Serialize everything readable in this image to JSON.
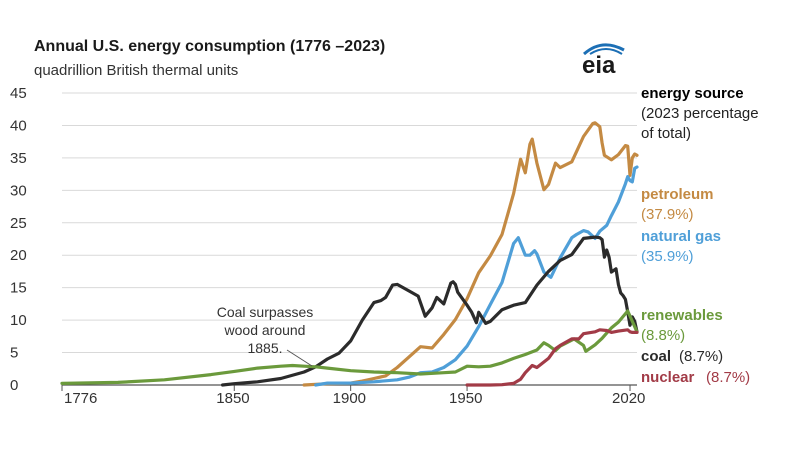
{
  "header": {
    "title": "Annual U.S. energy consumption (1776 –2023)",
    "subtitle": "quadrillion British thermal units",
    "logo_text": "eia",
    "logo_icon": "eia-logo-icon"
  },
  "legend": {
    "title": "energy source",
    "sub_line1": "(2023 percentage",
    "sub_line2": "of total)"
  },
  "annotation": {
    "line1": "Coal surpasses",
    "line2": "wood around",
    "line3": "1885."
  },
  "colors": {
    "petroleum": "#c48a43",
    "natural_gas": "#4f9fd8",
    "coal": "#2b2b2b",
    "renewables": "#6b9a3c",
    "nuclear": "#a23b47",
    "grid": "#d9d9d9",
    "axis": "#555555"
  },
  "chart_data": {
    "type": "line",
    "title": "Annual U.S. energy consumption (1776 –2023)",
    "subtitle": "quadrillion British thermal units",
    "xlabel": "",
    "ylabel": "",
    "xlim": [
      1776,
      2023
    ],
    "ylim": [
      0,
      45
    ],
    "grid": true,
    "legend_placement": "right",
    "x_ticks": [
      {
        "value": 1776,
        "label": "1776"
      },
      {
        "value": 1850,
        "label": "1850"
      },
      {
        "value": 1900,
        "label": "1900"
      },
      {
        "value": 1950,
        "label": "1950"
      },
      {
        "value": 2020,
        "label": "2020"
      }
    ],
    "y_ticks": [
      {
        "value": 0,
        "label": "0"
      },
      {
        "value": 5,
        "label": "5"
      },
      {
        "value": 10,
        "label": "10"
      },
      {
        "value": 15,
        "label": "15"
      },
      {
        "value": 20,
        "label": "20"
      },
      {
        "value": 25,
        "label": "25"
      },
      {
        "value": 30,
        "label": "30"
      },
      {
        "value": 35,
        "label": "35"
      },
      {
        "value": 40,
        "label": "40"
      },
      {
        "value": 45,
        "label": "45"
      }
    ],
    "series": [
      {
        "key": "petroleum",
        "name": "petroleum",
        "share": "(37.9%)",
        "points": [
          [
            1880,
            0
          ],
          [
            1890,
            0.2
          ],
          [
            1900,
            0.3
          ],
          [
            1905,
            0.6
          ],
          [
            1910,
            1.0
          ],
          [
            1915,
            1.4
          ],
          [
            1920,
            2.7
          ],
          [
            1925,
            4.3
          ],
          [
            1930,
            5.9
          ],
          [
            1935,
            5.7
          ],
          [
            1940,
            7.8
          ],
          [
            1945,
            10.1
          ],
          [
            1950,
            13.3
          ],
          [
            1955,
            17.3
          ],
          [
            1960,
            19.9
          ],
          [
            1965,
            23.2
          ],
          [
            1970,
            29.5
          ],
          [
            1973,
            34.8
          ],
          [
            1975,
            32.7
          ],
          [
            1977,
            37.1
          ],
          [
            1978,
            37.9
          ],
          [
            1980,
            34.2
          ],
          [
            1983,
            30.1
          ],
          [
            1985,
            30.9
          ],
          [
            1988,
            34.2
          ],
          [
            1990,
            33.5
          ],
          [
            1995,
            34.4
          ],
          [
            2000,
            38.3
          ],
          [
            2004,
            40.3
          ],
          [
            2005,
            40.4
          ],
          [
            2007,
            39.8
          ],
          [
            2008,
            37.3
          ],
          [
            2009,
            35.4
          ],
          [
            2012,
            34.7
          ],
          [
            2015,
            35.5
          ],
          [
            2018,
            36.9
          ],
          [
            2019,
            36.8
          ],
          [
            2020,
            32.3
          ],
          [
            2021,
            35.0
          ],
          [
            2022,
            35.6
          ],
          [
            2023,
            35.4
          ]
        ]
      },
      {
        "key": "natural_gas",
        "name": "natural gas",
        "share": "(35.9%)",
        "points": [
          [
            1885,
            0
          ],
          [
            1890,
            0.3
          ],
          [
            1900,
            0.3
          ],
          [
            1910,
            0.5
          ],
          [
            1920,
            0.8
          ],
          [
            1925,
            1.2
          ],
          [
            1930,
            1.9
          ],
          [
            1935,
            2.0
          ],
          [
            1940,
            2.7
          ],
          [
            1945,
            3.9
          ],
          [
            1950,
            6.0
          ],
          [
            1955,
            9.0
          ],
          [
            1960,
            12.4
          ],
          [
            1965,
            15.8
          ],
          [
            1970,
            21.8
          ],
          [
            1972,
            22.7
          ],
          [
            1975,
            20.0
          ],
          [
            1977,
            20.0
          ],
          [
            1979,
            20.7
          ],
          [
            1980,
            20.2
          ],
          [
            1983,
            17.4
          ],
          [
            1986,
            16.6
          ],
          [
            1990,
            19.6
          ],
          [
            1995,
            22.7
          ],
          [
            1997,
            23.2
          ],
          [
            2000,
            23.8
          ],
          [
            2002,
            23.6
          ],
          [
            2005,
            22.6
          ],
          [
            2007,
            23.7
          ],
          [
            2010,
            24.6
          ],
          [
            2012,
            26.1
          ],
          [
            2015,
            28.2
          ],
          [
            2018,
            31.0
          ],
          [
            2019,
            32.1
          ],
          [
            2020,
            31.5
          ],
          [
            2021,
            31.3
          ],
          [
            2022,
            33.4
          ],
          [
            2023,
            33.6
          ]
        ]
      },
      {
        "key": "coal",
        "name": "coal",
        "share": "(8.7%)",
        "points": [
          [
            1845,
            0
          ],
          [
            1850,
            0.2
          ],
          [
            1860,
            0.5
          ],
          [
            1870,
            1.0
          ],
          [
            1880,
            2.0
          ],
          [
            1885,
            2.8
          ],
          [
            1890,
            4.0
          ],
          [
            1895,
            4.9
          ],
          [
            1900,
            6.8
          ],
          [
            1905,
            10.0
          ],
          [
            1910,
            12.7
          ],
          [
            1913,
            13.0
          ],
          [
            1915,
            13.5
          ],
          [
            1918,
            15.4
          ],
          [
            1920,
            15.5
          ],
          [
            1925,
            14.5
          ],
          [
            1929,
            13.7
          ],
          [
            1932,
            10.6
          ],
          [
            1935,
            11.9
          ],
          [
            1937,
            13.5
          ],
          [
            1940,
            12.5
          ],
          [
            1943,
            15.7
          ],
          [
            1944,
            15.9
          ],
          [
            1945,
            15.5
          ],
          [
            1946,
            14.3
          ],
          [
            1950,
            12.3
          ],
          [
            1952,
            11.2
          ],
          [
            1954,
            9.6
          ],
          [
            1955,
            11.2
          ],
          [
            1958,
            9.5
          ],
          [
            1960,
            9.8
          ],
          [
            1965,
            11.6
          ],
          [
            1970,
            12.3
          ],
          [
            1975,
            12.7
          ],
          [
            1980,
            15.4
          ],
          [
            1985,
            17.5
          ],
          [
            1990,
            19.2
          ],
          [
            1995,
            20.1
          ],
          [
            2000,
            22.6
          ],
          [
            2005,
            22.8
          ],
          [
            2007,
            22.7
          ],
          [
            2008,
            22.4
          ],
          [
            2009,
            19.7
          ],
          [
            2010,
            20.8
          ],
          [
            2011,
            19.7
          ],
          [
            2012,
            17.4
          ],
          [
            2014,
            17.9
          ],
          [
            2015,
            15.5
          ],
          [
            2016,
            14.2
          ],
          [
            2017,
            13.8
          ],
          [
            2018,
            13.2
          ],
          [
            2019,
            11.3
          ],
          [
            2020,
            9.2
          ],
          [
            2021,
            10.5
          ],
          [
            2022,
            9.8
          ],
          [
            2023,
            8.2
          ]
        ]
      },
      {
        "key": "renewables",
        "name": "renewables",
        "share": "(8.8%)",
        "points": [
          [
            1776,
            0.25
          ],
          [
            1800,
            0.4
          ],
          [
            1820,
            0.8
          ],
          [
            1840,
            1.6
          ],
          [
            1850,
            2.1
          ],
          [
            1860,
            2.6
          ],
          [
            1870,
            2.9
          ],
          [
            1875,
            3.0
          ],
          [
            1880,
            2.9
          ],
          [
            1885,
            2.8
          ],
          [
            1890,
            2.6
          ],
          [
            1900,
            2.2
          ],
          [
            1910,
            2.0
          ],
          [
            1920,
            1.9
          ],
          [
            1930,
            1.7
          ],
          [
            1940,
            1.9
          ],
          [
            1945,
            2.0
          ],
          [
            1950,
            2.9
          ],
          [
            1955,
            2.8
          ],
          [
            1960,
            2.9
          ],
          [
            1965,
            3.4
          ],
          [
            1970,
            4.1
          ],
          [
            1975,
            4.7
          ],
          [
            1980,
            5.4
          ],
          [
            1983,
            6.5
          ],
          [
            1985,
            6.1
          ],
          [
            1988,
            5.3
          ],
          [
            1990,
            6.0
          ],
          [
            1996,
            7.1
          ],
          [
            2000,
            6.1
          ],
          [
            2001,
            5.2
          ],
          [
            2005,
            6.2
          ],
          [
            2008,
            7.2
          ],
          [
            2010,
            8.0
          ],
          [
            2012,
            8.8
          ],
          [
            2015,
            9.7
          ],
          [
            2019,
            11.4
          ],
          [
            2023,
            8.2
          ]
        ]
      },
      {
        "key": "nuclear",
        "name": "nuclear",
        "share": "(8.7%)",
        "points": [
          [
            1950,
            0
          ],
          [
            1957,
            0.0
          ],
          [
            1960,
            0.0
          ],
          [
            1965,
            0.04
          ],
          [
            1970,
            0.24
          ],
          [
            1973,
            0.9
          ],
          [
            1975,
            1.9
          ],
          [
            1978,
            3.0
          ],
          [
            1980,
            2.7
          ],
          [
            1985,
            4.1
          ],
          [
            1988,
            5.6
          ],
          [
            1990,
            6.1
          ],
          [
            1995,
            7.1
          ],
          [
            1998,
            7.1
          ],
          [
            2000,
            7.9
          ],
          [
            2005,
            8.2
          ],
          [
            2007,
            8.5
          ],
          [
            2010,
            8.4
          ],
          [
            2012,
            8.1
          ],
          [
            2015,
            8.3
          ],
          [
            2019,
            8.5
          ],
          [
            2020,
            8.2
          ],
          [
            2021,
            8.1
          ],
          [
            2022,
            8.1
          ],
          [
            2023,
            8.1
          ]
        ]
      }
    ]
  }
}
